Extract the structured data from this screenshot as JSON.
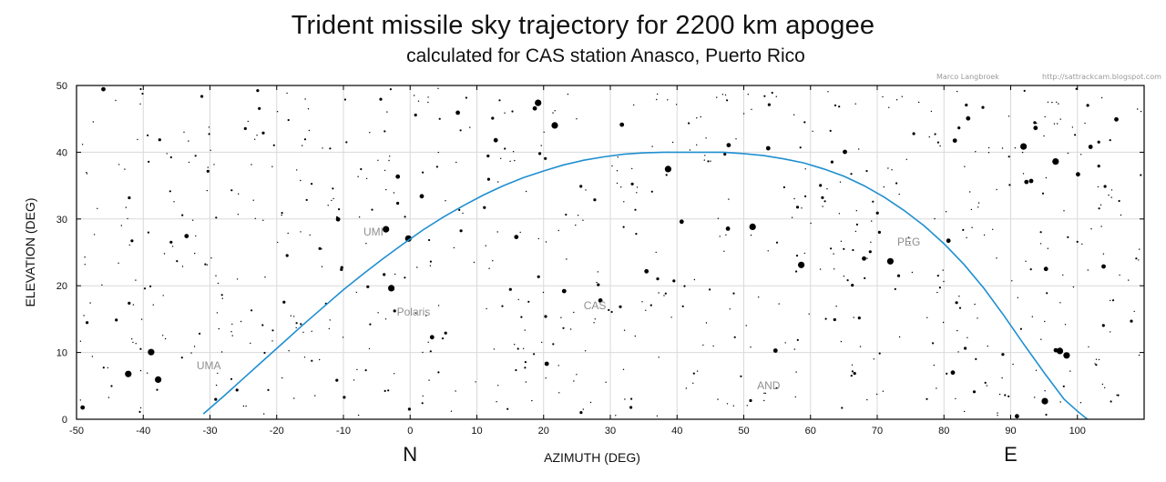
{
  "header": {
    "title": "Trident missile sky trajectory for 2200 km apogee",
    "subtitle": "calculated for CAS station Anasco, Puerto Rico",
    "credit_name": "Marco Langbroek",
    "credit_url": "http://sattrackcam.blogspot.com"
  },
  "chart_data": {
    "type": "line",
    "title": "Trident missile sky trajectory for 2200 km apogee",
    "subtitle": "calculated for CAS station Anasco, Puerto Rico",
    "xlabel": "AZIMUTH  (DEG)",
    "ylabel": "ELEVATION  (DEG)",
    "xlim": [
      -50,
      110
    ],
    "ylim": [
      0,
      50
    ],
    "xticks": [
      -50,
      -40,
      -30,
      -20,
      -10,
      0,
      10,
      20,
      30,
      40,
      50,
      60,
      70,
      80,
      90,
      100
    ],
    "yticks": [
      0,
      10,
      20,
      30,
      40,
      50
    ],
    "grid": true,
    "line_color": "#1f8fd0",
    "series": [
      {
        "x": [
          -31,
          -28,
          -25,
          -22,
          -19,
          -16,
          -13,
          -10,
          -7,
          -4,
          -1,
          2,
          5,
          8,
          11,
          14,
          17,
          20,
          23,
          26,
          29,
          32,
          35,
          38,
          41,
          44,
          47,
          50,
          53,
          56,
          59,
          62,
          65,
          68,
          71,
          74,
          77,
          80,
          83,
          86,
          89,
          92,
          95,
          98,
          100,
          101.5
        ],
        "y": [
          0.8,
          3.4,
          6.1,
          8.8,
          11.5,
          14.2,
          16.8,
          19.4,
          21.8,
          24.1,
          26.3,
          28.4,
          30.3,
          32.0,
          33.6,
          35.0,
          36.2,
          37.2,
          38.1,
          38.8,
          39.3,
          39.7,
          39.9,
          40.0,
          40.0,
          40.0,
          40.0,
          39.8,
          39.5,
          39.0,
          38.4,
          37.5,
          36.4,
          35.0,
          33.3,
          31.3,
          29.0,
          26.3,
          23.2,
          19.6,
          15.5,
          11.2,
          7.0,
          3.0,
          1.2,
          0.0
        ]
      }
    ],
    "annotations": [
      {
        "text": "UMI",
        "x": -7,
        "y": 27.5
      },
      {
        "text": "Polaris",
        "x": -2,
        "y": 15.5
      },
      {
        "text": "UMA",
        "x": -32,
        "y": 7.5
      },
      {
        "text": "CAS",
        "x": 26,
        "y": 16.5
      },
      {
        "text": "AND",
        "x": 52,
        "y": 4.5
      },
      {
        "text": "PEG",
        "x": 73,
        "y": 26
      }
    ],
    "direction_labels": [
      {
        "text": "N",
        "x": 0
      },
      {
        "text": "E",
        "x": 90
      }
    ]
  }
}
